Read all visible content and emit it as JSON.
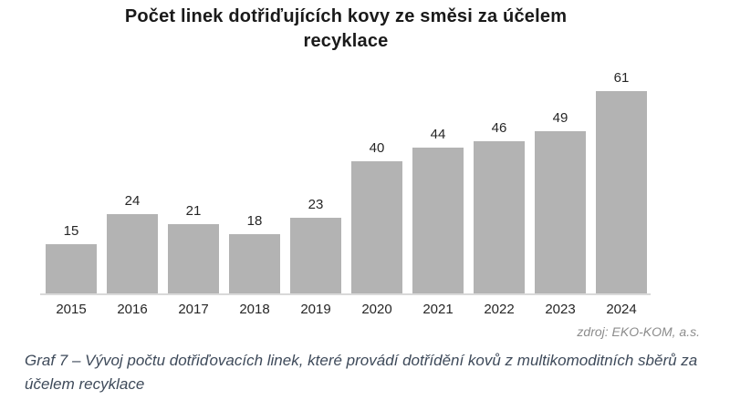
{
  "figure": {
    "title": "Počet linek dotřiďujících kovy ze směsi za účelem recyklace",
    "source_note": "zdroj: EKO-KOM, a.s.",
    "caption": "Graf 7 – Vývoj počtu dotřiďovacích linek, které provádí dotřídění kovů z multikomoditních sběrů za účelem recyklace"
  },
  "chart_data": {
    "type": "bar",
    "title": "Počet linek dotřiďujících kovy ze směsi za účelem recyklace",
    "categories": [
      "2015",
      "2016",
      "2017",
      "2018",
      "2019",
      "2020",
      "2021",
      "2022",
      "2023",
      "2024"
    ],
    "values": [
      15,
      24,
      21,
      18,
      23,
      40,
      44,
      46,
      49,
      61
    ],
    "xlabel": "",
    "ylabel": "",
    "ylim": [
      0,
      65
    ],
    "grid": false,
    "legend": false,
    "value_labels": true,
    "bar_color": "#b3b3b3",
    "axis_line_color": "#d9d9d9",
    "source": "zdroj: EKO-KOM, a.s."
  }
}
